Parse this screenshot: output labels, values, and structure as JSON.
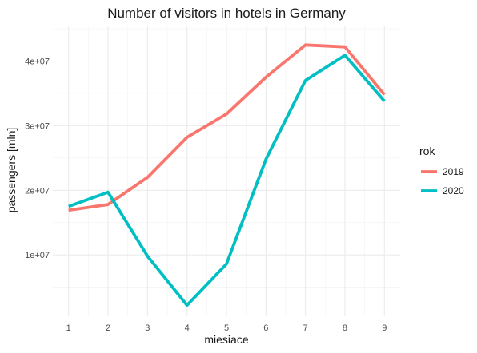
{
  "chart_data": {
    "type": "line",
    "title": "Number of visitors in hotels in Germany",
    "xlabel": "miesiace",
    "ylabel": "passengers [mln]",
    "x": [
      1,
      2,
      3,
      4,
      5,
      6,
      7,
      8,
      9
    ],
    "x_ticks": [
      "1",
      "2",
      "3",
      "4",
      "5",
      "6",
      "7",
      "8",
      "9"
    ],
    "y_ticks": [
      {
        "value": 10000000,
        "label": "1e+07"
      },
      {
        "value": 20000000,
        "label": "2e+07"
      },
      {
        "value": 30000000,
        "label": "3e+07"
      },
      {
        "value": 40000000,
        "label": "4e+07"
      }
    ],
    "xlim": [
      0.6,
      9.4
    ],
    "ylim": [
      500000,
      45500000
    ],
    "grid": true,
    "legend": {
      "title": "rok",
      "placement": "right"
    },
    "series": [
      {
        "name": "2019",
        "color": "#F8766D",
        "values": [
          16900000,
          17800000,
          22000000,
          28200000,
          31800000,
          37500000,
          42500000,
          42200000,
          34800000
        ]
      },
      {
        "name": "2020",
        "color": "#00BFC4",
        "values": [
          17500000,
          19700000,
          9800000,
          2200000,
          8600000,
          24800000,
          37000000,
          40900000,
          33800000
        ]
      }
    ]
  }
}
